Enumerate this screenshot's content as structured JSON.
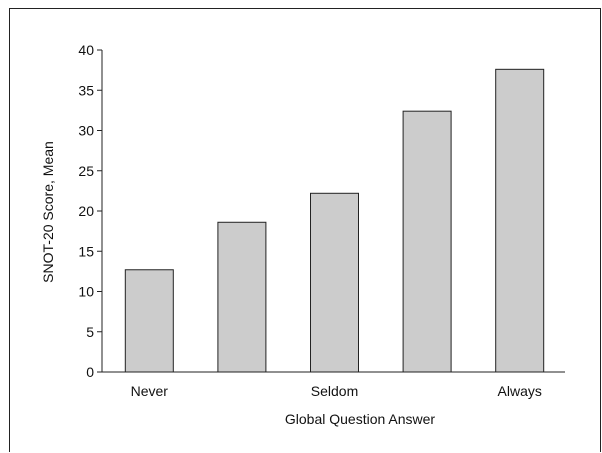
{
  "chart_data": {
    "type": "bar",
    "categories": [
      "",
      "",
      "",
      "",
      ""
    ],
    "x_tick_labels": [
      "Never",
      "",
      "Seldom",
      "",
      "Always"
    ],
    "values": [
      12.7,
      18.6,
      22.2,
      32.4,
      37.6
    ],
    "xlabel": "Global Question Answer",
    "ylabel": "SNOT-20 Score, Mean",
    "ylim": [
      0,
      40
    ],
    "yticks": [
      0,
      5,
      10,
      15,
      20,
      25,
      30,
      35,
      40
    ],
    "grid": false,
    "legend": "none",
    "colors": {
      "bar_fill": "#cccccc",
      "bar_stroke": "#222222",
      "axis": "#222222",
      "text": "#111111"
    }
  }
}
